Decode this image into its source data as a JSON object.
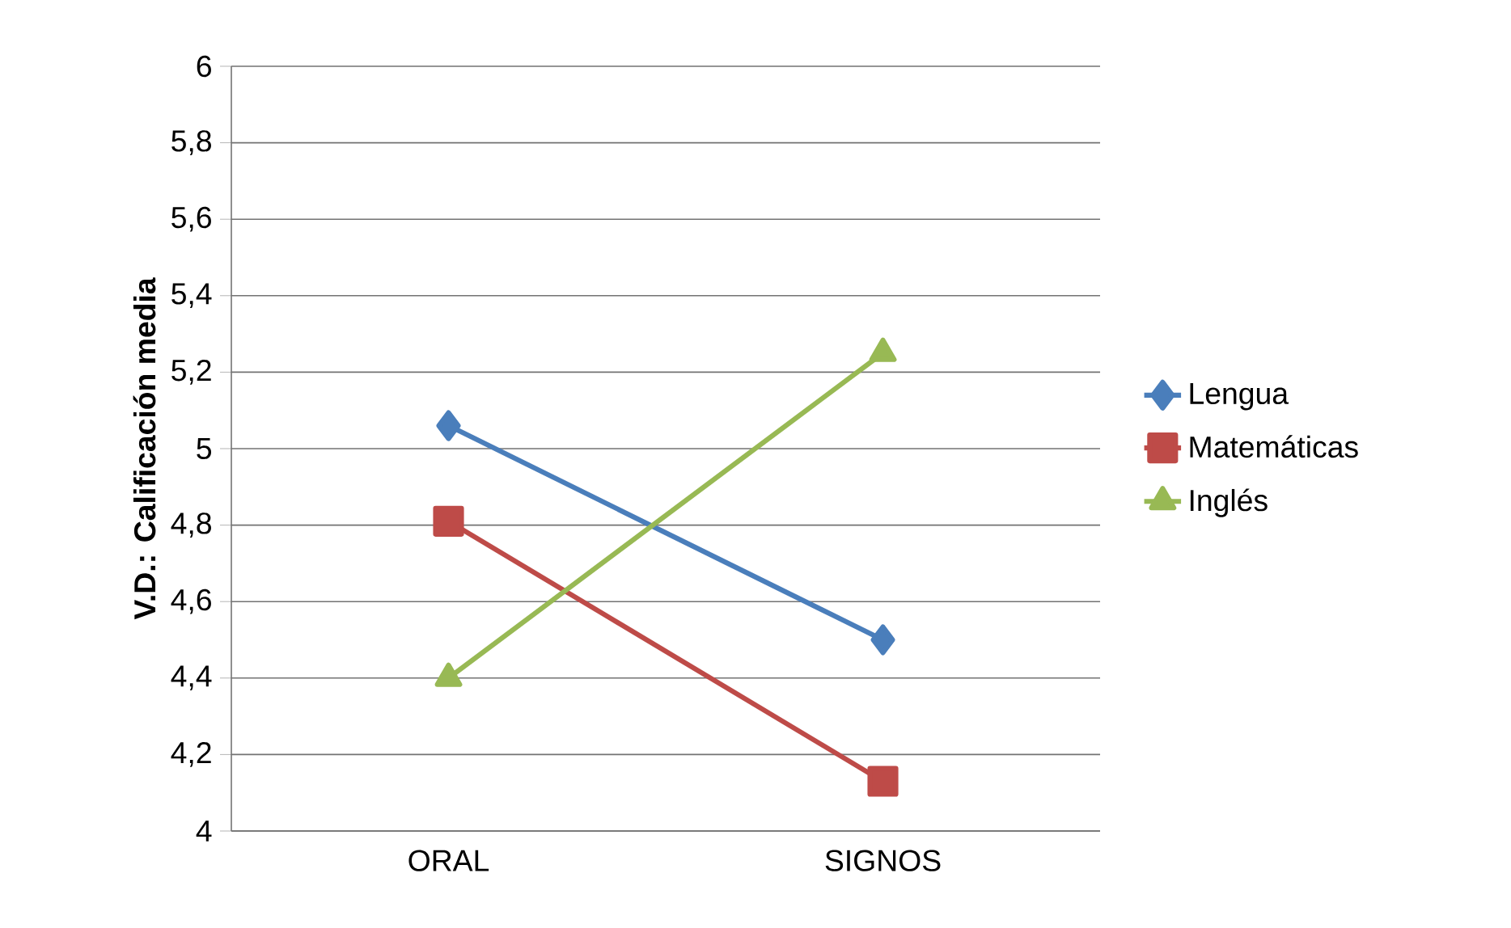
{
  "chart_data": {
    "type": "line",
    "ylabel": "V.D.: Calificación media",
    "categories": [
      "ORAL",
      "SIGNOS"
    ],
    "series": [
      {
        "name": "Lengua",
        "color": "#4a7ebb",
        "marker": "diamond",
        "values": [
          5.06,
          4.5
        ]
      },
      {
        "name": "Matemáticas",
        "color": "#be4b48",
        "marker": "square",
        "values": [
          4.81,
          4.13
        ]
      },
      {
        "name": "Inglés",
        "color": "#98b954",
        "marker": "triangle",
        "values": [
          4.4,
          5.25
        ]
      }
    ],
    "ylim": [
      4,
      6
    ],
    "yticks": [
      {
        "value": 4,
        "label": "4"
      },
      {
        "value": 4.2,
        "label": "4,2"
      },
      {
        "value": 4.4,
        "label": "4,4"
      },
      {
        "value": 4.6,
        "label": "4,6"
      },
      {
        "value": 4.8,
        "label": "4,8"
      },
      {
        "value": 5,
        "label": "5"
      },
      {
        "value": 5.2,
        "label": "5,2"
      },
      {
        "value": 5.4,
        "label": "5,4"
      },
      {
        "value": 5.6,
        "label": "5,6"
      },
      {
        "value": 5.8,
        "label": "5,8"
      },
      {
        "value": 6,
        "label": "6"
      }
    ],
    "grid": "y",
    "legend": "right",
    "line_style": "solid"
  }
}
